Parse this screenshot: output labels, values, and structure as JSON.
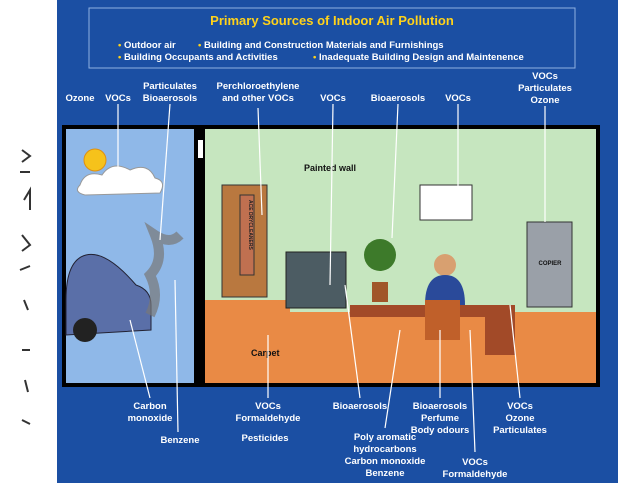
{
  "header": {
    "title": "Primary Sources of Indoor Air Pollution",
    "bullets": [
      "Outdoor air",
      "Building and Construction Materials and Furnishings",
      "Building Occupants and Activities",
      "Inadequate Building Design and Maintenence"
    ]
  },
  "scene": {
    "wall": "Painted wall",
    "floor": "Carpet",
    "copier": "COPIER",
    "bag": "ACE DRYCLEANERS"
  },
  "labels": [
    {
      "lines": [
        "Ozone"
      ]
    },
    {
      "lines": [
        "VOCs"
      ]
    },
    {
      "lines": [
        "Particulates",
        "Bioaerosols"
      ]
    },
    {
      "lines": [
        "Perchloroethylene",
        "and other VOCs"
      ]
    },
    {
      "lines": [
        "VOCs"
      ]
    },
    {
      "lines": [
        "Bioaerosols"
      ]
    },
    {
      "lines": [
        "VOCs"
      ]
    },
    {
      "lines": [
        "VOCs",
        "Particulates",
        "Ozone"
      ]
    },
    {
      "lines": [
        "Carbon",
        "monoxide"
      ]
    },
    {
      "lines": [
        "Benzene"
      ]
    },
    {
      "lines": [
        "VOCs",
        "Formaldehyde"
      ]
    },
    {
      "lines": [
        "Pesticides"
      ]
    },
    {
      "lines": [
        "Bioaerosols"
      ]
    },
    {
      "lines": [
        "Poly aromatic",
        "hydrocarbons",
        "Carbon monoxide",
        "Benzene"
      ]
    },
    {
      "lines": [
        "Bioaerosols",
        "Perfume",
        "Body odours"
      ]
    },
    {
      "lines": [
        "VOCs",
        "Formaldehyde"
      ]
    },
    {
      "lines": [
        "VOCs",
        "Ozone",
        "Particulates"
      ]
    }
  ]
}
